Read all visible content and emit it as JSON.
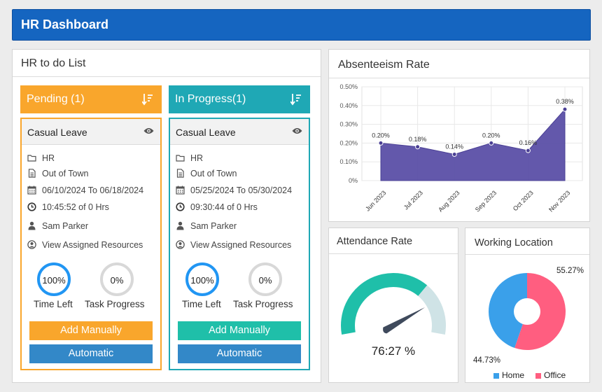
{
  "header": {
    "title": "HR Dashboard"
  },
  "todo": {
    "title": "HR to do List",
    "columns": [
      {
        "label": "Pending (1)",
        "color": "#f9a62c",
        "card": {
          "title": "Casual Leave",
          "department": "HR",
          "reason": "Out of Town",
          "dates": "06/10/2024 To 06/18/2024",
          "time": "10:45:52 of  0 Hrs",
          "person": "Sam Parker",
          "resources": "View Assigned Resources",
          "time_left_value": "100%",
          "time_left_label": "Time Left",
          "task_progress_value": "0%",
          "task_progress_label": "Task Progress",
          "add_label": "Add Manually",
          "auto_label": "Automatic"
        }
      },
      {
        "label": "In Progress(1)",
        "color": "#1fa8b5",
        "card": {
          "title": "Casual Leave",
          "department": "HR",
          "reason": "Out of Town",
          "dates": "05/25/2024 To 05/30/2024",
          "time": "09:30:44 of  0 Hrs",
          "person": "Sam Parker",
          "resources": "View Assigned Resources",
          "time_left_value": "100%",
          "time_left_label": "Time Left",
          "task_progress_value": "0%",
          "task_progress_label": "Task Progress",
          "add_label": "Add Manually",
          "auto_label": "Automatic"
        }
      }
    ]
  },
  "absenteeism": {
    "title": "Absenteeism Rate",
    "chart_data": {
      "type": "area",
      "categories": [
        "Jun 2023",
        "Jul 2023",
        "Aug 2023",
        "Sep 2023",
        "Oct 2023",
        "Nov 2023"
      ],
      "values": [
        0.2,
        0.18,
        0.14,
        0.2,
        0.16,
        0.38
      ],
      "data_labels": [
        "0.20%",
        "0.18%",
        "0.14%",
        "0.20%",
        "0.16%",
        "0.38%"
      ],
      "y_ticks": [
        "0%",
        "0.10%",
        "0.20%",
        "0.30%",
        "0.40%",
        "0.50%"
      ],
      "ylim": [
        0,
        0.5
      ],
      "grid": true,
      "color": "#5b4fa6"
    }
  },
  "attendance": {
    "title": "Attendance Rate",
    "value": "76:27 %",
    "fraction": 0.7627,
    "fill_color": "#1fbfa9",
    "track_color": "#cfe3e6"
  },
  "location": {
    "title": "Working Location",
    "chart_data": {
      "type": "pie",
      "labels": [
        "Home",
        "Office"
      ],
      "values": [
        44.73,
        55.27
      ],
      "data_labels": [
        "44.73%",
        "55.27%"
      ],
      "colors": [
        "#3aa0ea",
        "#ff5e80"
      ],
      "legend": "bottom"
    }
  }
}
